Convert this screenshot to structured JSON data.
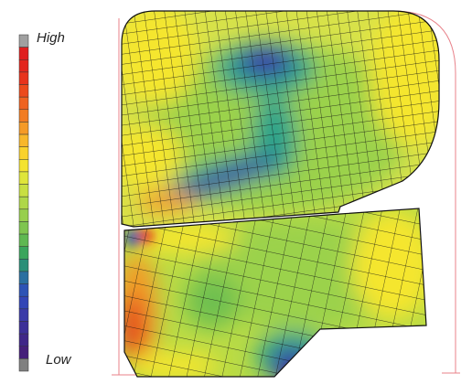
{
  "legend": {
    "high_label": "High",
    "low_label": "Low",
    "segments": [
      "#a0a0a0",
      "#e01f1f",
      "#e3261e",
      "#e8331c",
      "#ec4a1c",
      "#ef6320",
      "#f27c22",
      "#f59a26",
      "#f8b72a",
      "#f9d22c",
      "#f4e32f",
      "#dfe53a",
      "#c8df41",
      "#afd748",
      "#97cf4d",
      "#7fc54f",
      "#5fb851",
      "#3aa55c",
      "#2a8f78",
      "#2a6fa0",
      "#2d53b5",
      "#3345b6",
      "#3a3aa8",
      "#3c2f98",
      "#3f2688",
      "#451f7a",
      "#808080"
    ]
  },
  "field_colors": {
    "high": "#e3261e",
    "upper_mid": "#f5e62f",
    "mid": "#9bd24c",
    "lower_mid": "#2aa38a",
    "low": "#3a36a8",
    "mesh_line": "#111111",
    "boundary": "#e8828a"
  }
}
